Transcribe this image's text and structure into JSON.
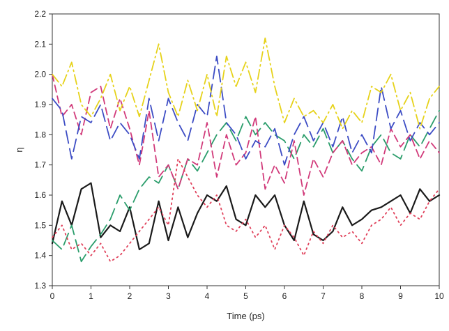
{
  "chart_data": {
    "type": "line",
    "title": "",
    "xlabel": "Time (ps)",
    "ylabel": "η",
    "xlim": [
      0,
      10
    ],
    "ylim": [
      1.3,
      2.2
    ],
    "grid": false,
    "x_ticks": [
      "0",
      "1",
      "2",
      "3",
      "4",
      "5",
      "6",
      "7",
      "8",
      "9",
      "10"
    ],
    "y_ticks": [
      "1.3",
      "1.4",
      "1.5",
      "1.6",
      "1.7",
      "1.8",
      "1.9",
      "2.0",
      "2.1",
      "2.2"
    ],
    "series": [
      {
        "color": "#1a1a1a",
        "line_style": "solid",
        "x": [
          0.0,
          0.25,
          0.5,
          0.75,
          1.0,
          1.25,
          1.5,
          1.75,
          2.0,
          2.25,
          2.5,
          2.75,
          3.0,
          3.25,
          3.5,
          3.75,
          4.0,
          4.25,
          4.5,
          4.75,
          5.0,
          5.25,
          5.5,
          5.75,
          6.0,
          6.25,
          6.5,
          6.75,
          7.0,
          7.25,
          7.5,
          7.75,
          8.0,
          8.25,
          8.5,
          8.75,
          9.0,
          9.25,
          9.5,
          9.75,
          10.0
        ],
        "y": [
          1.44,
          1.58,
          1.5,
          1.62,
          1.64,
          1.46,
          1.5,
          1.48,
          1.56,
          1.42,
          1.44,
          1.58,
          1.45,
          1.56,
          1.46,
          1.54,
          1.6,
          1.58,
          1.63,
          1.52,
          1.5,
          1.6,
          1.56,
          1.6,
          1.5,
          1.45,
          1.58,
          1.47,
          1.45,
          1.48,
          1.56,
          1.5,
          1.52,
          1.55,
          1.56,
          1.58,
          1.6,
          1.54,
          1.62,
          1.58,
          1.6
        ]
      },
      {
        "color": "#2a9d6b",
        "line_style": "long-dash",
        "x": [
          0.0,
          0.25,
          0.5,
          0.75,
          1.0,
          1.25,
          1.5,
          1.75,
          2.0,
          2.25,
          2.5,
          2.75,
          3.0,
          3.25,
          3.5,
          3.75,
          4.0,
          4.25,
          4.5,
          4.75,
          5.0,
          5.25,
          5.5,
          5.75,
          6.0,
          6.25,
          6.5,
          6.75,
          7.0,
          7.25,
          7.5,
          7.75,
          8.0,
          8.25,
          8.5,
          8.75,
          9.0,
          9.25,
          9.5,
          9.75,
          10.0
        ],
        "y": [
          1.45,
          1.42,
          1.5,
          1.38,
          1.43,
          1.47,
          1.52,
          1.6,
          1.55,
          1.62,
          1.66,
          1.64,
          1.7,
          1.62,
          1.72,
          1.68,
          1.74,
          1.8,
          1.84,
          1.78,
          1.86,
          1.8,
          1.84,
          1.8,
          1.78,
          1.72,
          1.8,
          1.76,
          1.82,
          1.74,
          1.78,
          1.72,
          1.68,
          1.76,
          1.8,
          1.74,
          1.72,
          1.8,
          1.76,
          1.82,
          1.88
        ]
      },
      {
        "color": "#d13a7a",
        "line_style": "dash",
        "x": [
          0.0,
          0.25,
          0.5,
          0.75,
          1.0,
          1.25,
          1.5,
          1.75,
          2.0,
          2.25,
          2.5,
          2.75,
          3.0,
          3.25,
          3.5,
          3.75,
          4.0,
          4.25,
          4.5,
          4.75,
          5.0,
          5.25,
          5.5,
          5.75,
          6.0,
          6.25,
          6.5,
          6.75,
          7.0,
          7.25,
          7.5,
          7.75,
          8.0,
          8.25,
          8.5,
          8.75,
          9.0,
          9.25,
          9.5,
          9.75,
          10.0
        ],
        "y": [
          2.0,
          1.86,
          1.9,
          1.8,
          1.94,
          1.96,
          1.82,
          1.92,
          1.82,
          1.7,
          1.88,
          1.66,
          1.7,
          1.62,
          1.72,
          1.7,
          1.84,
          1.66,
          1.8,
          1.7,
          1.74,
          1.86,
          1.62,
          1.7,
          1.64,
          1.78,
          1.6,
          1.72,
          1.66,
          1.74,
          1.78,
          1.7,
          1.74,
          1.76,
          1.7,
          1.82,
          1.76,
          1.8,
          1.72,
          1.78,
          1.74
        ]
      },
      {
        "color": "#3c4cc4",
        "line_style": "long-dash",
        "x": [
          0.0,
          0.25,
          0.5,
          0.75,
          1.0,
          1.25,
          1.5,
          1.75,
          2.0,
          2.25,
          2.5,
          2.75,
          3.0,
          3.25,
          3.5,
          3.75,
          4.0,
          4.25,
          4.5,
          4.75,
          5.0,
          5.25,
          5.5,
          5.75,
          6.0,
          6.25,
          6.5,
          6.75,
          7.0,
          7.25,
          7.5,
          7.75,
          8.0,
          8.25,
          8.5,
          8.75,
          9.0,
          9.25,
          9.5,
          9.75,
          10.0
        ],
        "y": [
          1.92,
          1.88,
          1.72,
          1.86,
          1.84,
          1.9,
          1.78,
          1.84,
          1.8,
          1.72,
          1.92,
          1.78,
          1.92,
          1.84,
          1.78,
          1.9,
          1.86,
          2.06,
          1.84,
          1.8,
          1.72,
          1.78,
          1.76,
          1.82,
          1.7,
          1.8,
          1.86,
          1.78,
          1.84,
          1.76,
          1.86,
          1.74,
          1.8,
          1.74,
          1.96,
          1.82,
          1.88,
          1.78,
          1.84,
          1.8,
          1.84
        ]
      },
      {
        "color": "#e6d21a",
        "line_style": "dash-dot",
        "x": [
          0.0,
          0.25,
          0.5,
          0.75,
          1.0,
          1.25,
          1.5,
          1.75,
          2.0,
          2.25,
          2.5,
          2.75,
          3.0,
          3.25,
          3.5,
          3.75,
          4.0,
          4.25,
          4.5,
          4.75,
          5.0,
          5.25,
          5.5,
          5.75,
          6.0,
          6.25,
          6.5,
          6.75,
          7.0,
          7.25,
          7.5,
          7.75,
          8.0,
          8.25,
          8.5,
          8.75,
          9.0,
          9.25,
          9.5,
          9.75,
          10.0
        ],
        "y": [
          2.0,
          1.96,
          2.04,
          1.9,
          1.86,
          1.92,
          2.0,
          1.88,
          1.96,
          1.86,
          1.98,
          2.1,
          1.94,
          1.86,
          1.98,
          1.88,
          2.0,
          1.86,
          2.06,
          1.96,
          2.04,
          1.94,
          2.12,
          1.96,
          1.84,
          1.92,
          1.86,
          1.88,
          1.84,
          1.9,
          1.82,
          1.88,
          1.84,
          1.96,
          1.94,
          2.0,
          1.88,
          1.94,
          1.82,
          1.92,
          1.96
        ]
      },
      {
        "color": "#e0405a",
        "line_style": "dotted",
        "x": [
          0.0,
          0.25,
          0.5,
          0.75,
          1.0,
          1.25,
          1.5,
          1.75,
          2.0,
          2.25,
          2.5,
          2.75,
          3.0,
          3.25,
          3.5,
          3.75,
          4.0,
          4.25,
          4.5,
          4.75,
          5.0,
          5.25,
          5.5,
          5.75,
          6.0,
          6.25,
          6.5,
          6.75,
          7.0,
          7.25,
          7.5,
          7.75,
          8.0,
          8.25,
          8.5,
          8.75,
          9.0,
          9.25,
          9.5,
          9.75,
          10.0
        ],
        "y": [
          1.46,
          1.5,
          1.42,
          1.44,
          1.4,
          1.44,
          1.38,
          1.4,
          1.44,
          1.48,
          1.52,
          1.56,
          1.5,
          1.72,
          1.66,
          1.6,
          1.56,
          1.6,
          1.5,
          1.48,
          1.52,
          1.46,
          1.5,
          1.42,
          1.5,
          1.46,
          1.4,
          1.48,
          1.44,
          1.5,
          1.46,
          1.48,
          1.44,
          1.5,
          1.52,
          1.56,
          1.5,
          1.54,
          1.52,
          1.58,
          1.62
        ]
      }
    ]
  }
}
